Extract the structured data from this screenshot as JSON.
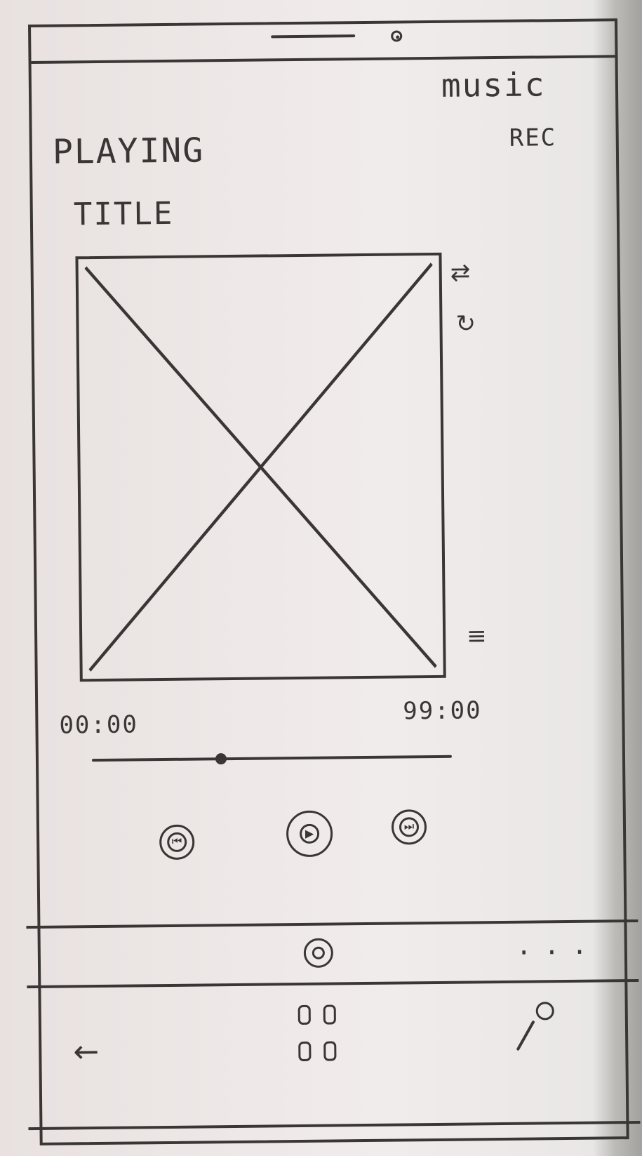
{
  "header": {
    "tab_music": "music",
    "tab_rec": "REC"
  },
  "nowplaying": {
    "playing_label": "PLAYING",
    "title_label": "TITLE"
  },
  "icons": {
    "shuffle": "shuffle-icon",
    "repeat": "repeat-icon",
    "queue": "queue-icon",
    "prev": "prev-icon",
    "play": "play-icon",
    "next": "next-icon",
    "mini_player": "mini-player-icon",
    "more": "more-icon",
    "back": "back-icon",
    "apps": "apps-icon",
    "search": "search-icon"
  },
  "progress": {
    "start": "00:00",
    "end": "99:00",
    "position": 0.35
  },
  "more": {
    "label": "..."
  }
}
